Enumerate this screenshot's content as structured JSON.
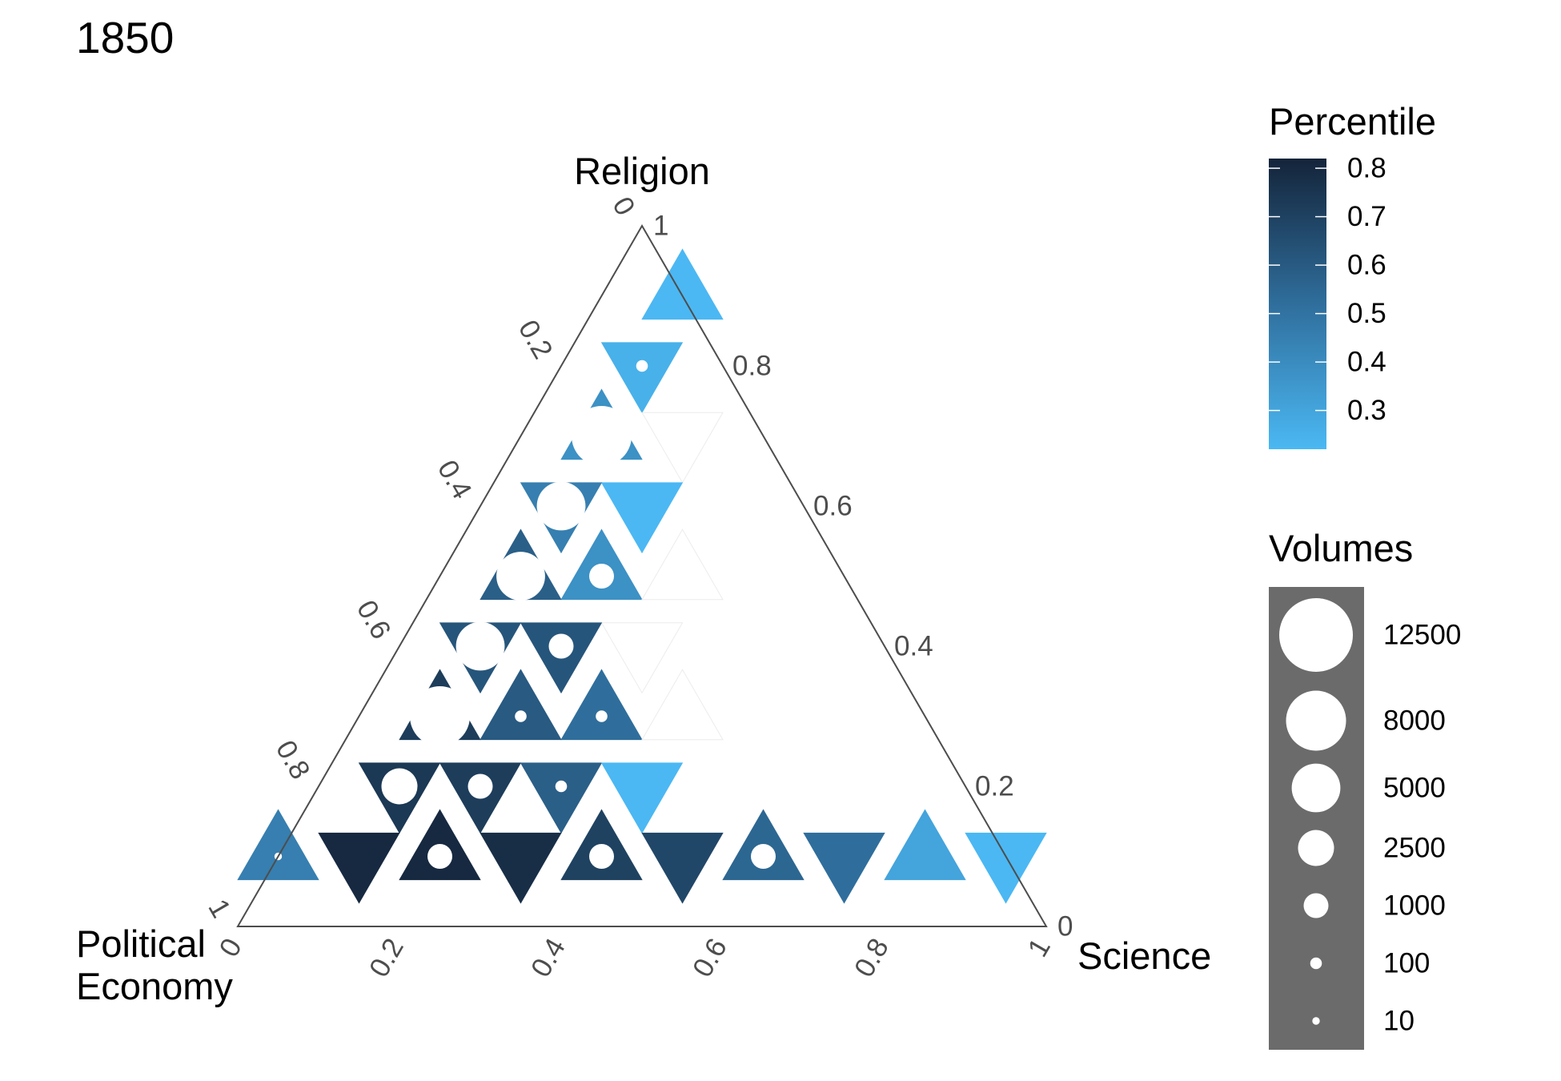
{
  "chart_data": {
    "type": "ternary-heatmap",
    "title": "1850",
    "axes": {
      "top": "Religion",
      "left": "Political\nEconomy",
      "right": "Science"
    },
    "ticks": [
      "0.2",
      "0.4",
      "0.6",
      "0.8"
    ],
    "corner_ticks": {
      "top": [
        "0",
        "1"
      ],
      "left": [
        "1",
        "0"
      ],
      "right": [
        "0",
        "1"
      ]
    },
    "legend_position": "right",
    "color_legend": {
      "title": "Percentile",
      "breaks": [
        0.8,
        0.7,
        0.6,
        0.5,
        0.4,
        0.3
      ],
      "range": [
        0.22,
        0.82
      ],
      "colors": [
        "#4bb8f3",
        "#14243a"
      ]
    },
    "size_legend": {
      "title": "Volumes",
      "breaks": [
        12500,
        8000,
        5000,
        2500,
        1000,
        100,
        10
      ]
    },
    "cells": [
      {
        "science": 0.1,
        "religion": 0.9,
        "orientation": "up",
        "percentile": 0.22,
        "volume": null
      },
      {
        "science": 0.1,
        "religion": 0.8,
        "orientation": "down",
        "percentile": 0.25,
        "volume": 100
      },
      {
        "science": 0.2,
        "religion": 0.7,
        "orientation": "down",
        "percentile": null,
        "volume": null
      },
      {
        "science": 0.1,
        "religion": 0.7,
        "orientation": "up",
        "percentile": 0.38,
        "volume": 8000
      },
      {
        "science": 0.2,
        "religion": 0.6,
        "orientation": "down",
        "percentile": 0.22,
        "volume": null
      },
      {
        "science": 0.1,
        "religion": 0.6,
        "orientation": "down",
        "percentile": 0.45,
        "volume": 5000
      },
      {
        "science": 0.2,
        "religion": 0.5,
        "orientation": "up",
        "percentile": 0.38,
        "volume": 1000
      },
      {
        "science": 0.3,
        "religion": 0.5,
        "orientation": "up",
        "percentile": null,
        "volume": null
      },
      {
        "science": 0.1,
        "religion": 0.5,
        "orientation": "up",
        "percentile": 0.58,
        "volume": 5000
      },
      {
        "science": 0.3,
        "religion": 0.4,
        "orientation": "down",
        "percentile": null,
        "volume": null
      },
      {
        "science": 0.1,
        "religion": 0.4,
        "orientation": "down",
        "percentile": 0.62,
        "volume": 5000
      },
      {
        "science": 0.2,
        "religion": 0.4,
        "orientation": "down",
        "percentile": 0.62,
        "volume": 1000
      },
      {
        "science": 0.3,
        "religion": 0.3,
        "orientation": "up",
        "percentile": 0.52,
        "volume": 100
      },
      {
        "science": 0.4,
        "religion": 0.3,
        "orientation": "up",
        "percentile": null,
        "volume": null
      },
      {
        "science": 0.1,
        "religion": 0.3,
        "orientation": "up",
        "percentile": 0.72,
        "volume": 8000
      },
      {
        "science": 0.2,
        "religion": 0.3,
        "orientation": "up",
        "percentile": 0.6,
        "volume": 100
      },
      {
        "science": 0.1,
        "religion": 0.2,
        "orientation": "down",
        "percentile": 0.74,
        "volume": 2500
      },
      {
        "science": 0.2,
        "religion": 0.2,
        "orientation": "down",
        "percentile": 0.72,
        "volume": 1000
      },
      {
        "science": 0.3,
        "religion": 0.2,
        "orientation": "down",
        "percentile": 0.58,
        "volume": 100
      },
      {
        "science": 0.4,
        "religion": 0.2,
        "orientation": "down",
        "percentile": 0.22,
        "volume": null
      },
      {
        "science": 0.0,
        "religion": 0.1,
        "orientation": "up",
        "percentile": 0.45,
        "volume": 10
      },
      {
        "science": 0.2,
        "religion": 0.1,
        "orientation": "up",
        "percentile": 0.8,
        "volume": 1000
      },
      {
        "science": 0.4,
        "religion": 0.1,
        "orientation": "up",
        "percentile": 0.7,
        "volume": 1000
      },
      {
        "science": 0.6,
        "religion": 0.1,
        "orientation": "up",
        "percentile": 0.55,
        "volume": 1000
      },
      {
        "science": 0.8,
        "religion": 0.1,
        "orientation": "up",
        "percentile": 0.3,
        "volume": null
      },
      {
        "science": 0.1,
        "religion": 0.1,
        "orientation": "down",
        "percentile": 0.8,
        "volume": null
      },
      {
        "science": 0.3,
        "religion": 0.1,
        "orientation": "down",
        "percentile": 0.78,
        "volume": null
      },
      {
        "science": 0.5,
        "religion": 0.1,
        "orientation": "down",
        "percentile": 0.68,
        "volume": null
      },
      {
        "science": 0.7,
        "religion": 0.1,
        "orientation": "down",
        "percentile": 0.52,
        "volume": null
      },
      {
        "science": 0.9,
        "religion": 0.1,
        "orientation": "down",
        "percentile": 0.22,
        "volume": null
      }
    ]
  }
}
